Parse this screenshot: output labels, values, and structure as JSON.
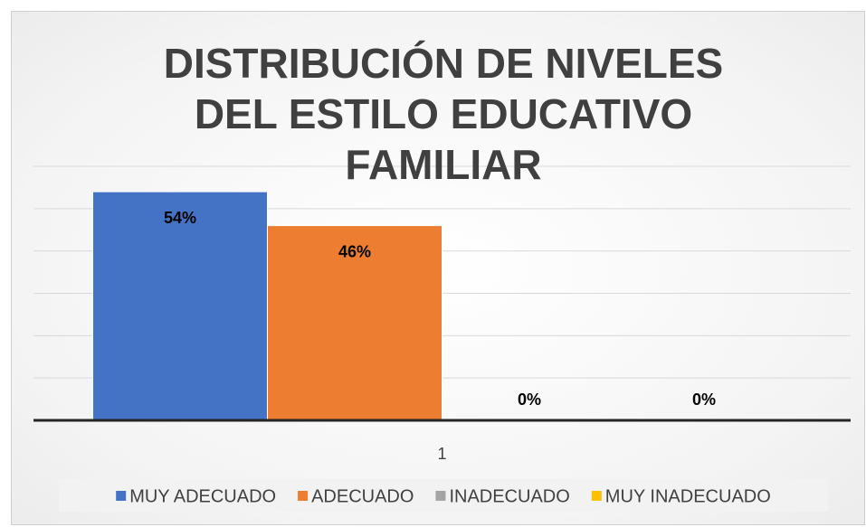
{
  "chart_data": {
    "type": "bar",
    "title": "DISTRIBUCIÓN DE NIVELES DEL ESTILO EDUCATIVO FAMILIAR",
    "categories": [
      "1"
    ],
    "series": [
      {
        "name": "MUY ADECUADO",
        "color": "#4472c4",
        "values": [
          54
        ],
        "value_labels": [
          "54%"
        ]
      },
      {
        "name": "ADECUADO",
        "color": "#ed7d31",
        "values": [
          46
        ],
        "value_labels": [
          "46%"
        ]
      },
      {
        "name": "INADECUADO",
        "color": "#a5a5a5",
        "values": [
          0
        ],
        "value_labels": [
          "0%"
        ]
      },
      {
        "name": "MUY INADECUADO",
        "color": "#ffc000",
        "values": [
          0
        ],
        "value_labels": [
          "0%"
        ]
      }
    ],
    "ylim": [
      0,
      60
    ],
    "yticks": [
      0,
      10,
      20,
      30,
      40,
      50,
      60
    ],
    "grid": true,
    "legend": "bottom"
  }
}
